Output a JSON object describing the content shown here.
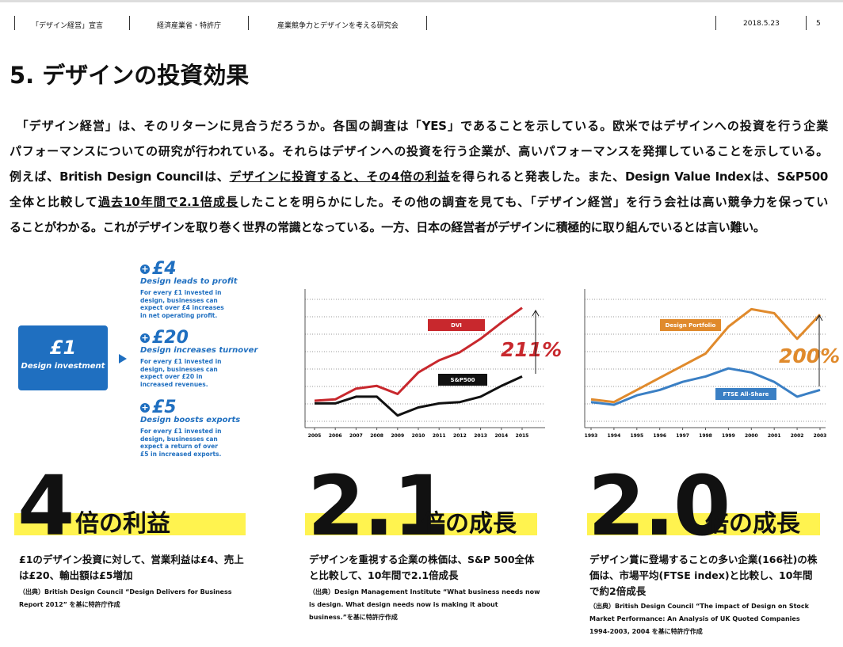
{
  "header": {
    "items": [
      "「デザイン経営」宣言",
      "経済産業省・特許庁",
      "産業競争力とデザインを考える研究会"
    ],
    "date": "2018.5.23",
    "page": "5"
  },
  "title": "5. デザインの投資効果",
  "body": {
    "lines": [
      [
        {
          "text": "　「デザイン経営」は、そのリターンに見合うだろうか。各国の調査は「YES」であることを示している。欧米ではデザインへの投資を行う企業"
        }
      ],
      [
        {
          "text": "パフォーマンスについての研究が行われている。それらはデザインへの投資を行う企業が、高いパフォーマンスを発揮していることを示している。"
        }
      ],
      [
        {
          "text": "例えば、British Design Councilは、"
        },
        {
          "text": "デザインに投資すると、その4倍の利益",
          "underline": true
        },
        {
          "text": "を得られると発表した。また、Design Value Indexは、S&P500"
        }
      ],
      [
        {
          "text": "全体と比較して"
        },
        {
          "text": "過去10年間で2.1倍成長",
          "underline": true
        },
        {
          "text": "したことを明らかにした。その他の調査を見ても、「デザイン経営」を行う会社は高い競争力を保ってい"
        }
      ],
      [
        {
          "text": "ることがわかる。これがデザインを取り巻く世界の常識となっている。一方、日本の経営者がデザインに積極的に取り組んでいるとは言い難い。"
        }
      ]
    ]
  },
  "infographic": {
    "investment": {
      "amount": "£1",
      "label": "Design investment"
    },
    "items": [
      {
        "amount": "£4",
        "heading": "Design leads to profit",
        "lines": [
          "For every £1 invested in",
          "design, businesses can",
          "expect over £4 increases",
          "in net operating profit."
        ]
      },
      {
        "amount": "£20",
        "heading": "Design increases turnover",
        "lines": [
          "For every £1 invested in",
          "design, businesses can",
          "expect over £20 in",
          "increased revenues."
        ]
      },
      {
        "amount": "£5",
        "heading": "Design boosts exports",
        "lines": [
          "For every £1 invested in",
          "design, businesses can",
          "expect a return of over",
          "£5 in increased exports."
        ]
      }
    ]
  },
  "charts": [
    {
      "type": "line",
      "x": [
        2005,
        2006,
        2007,
        2008,
        2009,
        2010,
        2011,
        2012,
        2013,
        2014,
        2015
      ],
      "xlim": [
        2005,
        2015
      ],
      "xticks": [
        2005,
        2006,
        2007,
        2008,
        2009,
        2010,
        2011,
        2012,
        2013,
        2014,
        2015
      ],
      "ylim": [
        0,
        100
      ],
      "series": [
        {
          "name": "DVI",
          "color": "#c8282d",
          "values": [
            20,
            21,
            29,
            31,
            25,
            41,
            50,
            56,
            66,
            78,
            89
          ]
        },
        {
          "name": "S&P500",
          "color": "#111111",
          "values": [
            18,
            18,
            23,
            23,
            9,
            15,
            18,
            19,
            23,
            31,
            38
          ]
        }
      ],
      "annotation": "211%"
    },
    {
      "type": "line",
      "x": [
        1993,
        1994,
        1995,
        1996,
        1997,
        1998,
        1999,
        2000,
        2001,
        2002,
        2003
      ],
      "xlim": [
        1993,
        2003
      ],
      "xticks": [
        1993,
        1994,
        1995,
        1996,
        1997,
        1998,
        1999,
        2000,
        2001,
        2002,
        2003
      ],
      "ylim": [
        0,
        100
      ],
      "series": [
        {
          "name": "Design Portfolio",
          "color": "#e08a2c",
          "values": [
            21,
            19,
            28,
            37,
            46,
            55,
            75,
            88,
            85,
            66,
            84
          ]
        },
        {
          "name": "FTSE All-Share",
          "color": "#3a7fc4",
          "values": [
            19,
            17,
            24,
            28,
            34,
            38,
            44,
            41,
            34,
            23,
            28
          ]
        }
      ],
      "annotation": "200%"
    }
  ],
  "results": [
    {
      "number": "4",
      "suffix": "倍の利益",
      "desc": "£1のデザイン投資に対して、営業利益は£4、売上は£20、輸出額は£5増加",
      "source": "（出典）British Design Council “Design Delivers for Business Report 2012” を基に特許庁作成"
    },
    {
      "number": "2.1",
      "suffix": "倍の成長",
      "desc": "デザインを重視する企業の株価は、S&P 500全体と比較して、10年間で2.1倍成長",
      "source": "（出典）Design Management Institute “What business needs now is design. What design needs now is making it about business.”を基に特許庁作成"
    },
    {
      "number": "2.0",
      "suffix": "倍の成長",
      "desc": "デザイン賞に登場することの多い企業(166社)の株価は、市場平均(FTSE index)と比較し、10年間で約2倍成長",
      "source": "（出典）British Design Council “The impact of Design on Stock Market Performance: An Analysis of UK Quoted Companies 1994-2003, 2004 を基に特許庁作成"
    }
  ]
}
